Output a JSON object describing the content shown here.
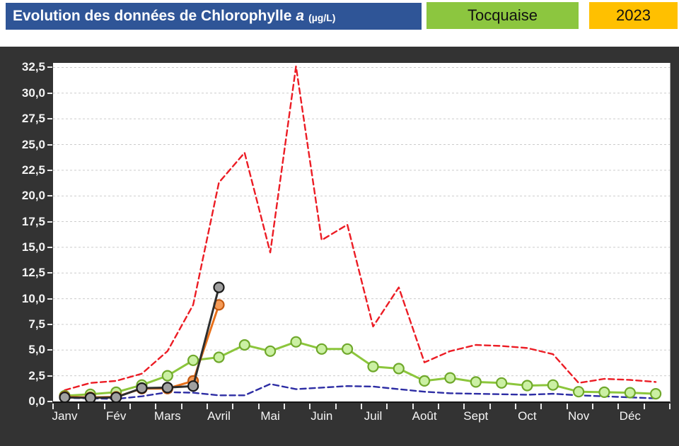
{
  "header": {
    "title_main": "Evolution des données de Chlorophylle",
    "title_italic": "a",
    "title_unit": "(µg/L)",
    "station_label": "Tocquaise",
    "year_label": "2023",
    "title_bg": "#2F5597",
    "station_bg": "#8CC63F",
    "year_bg": "#FFC000"
  },
  "chart_data": {
    "type": "line",
    "title": "Evolution des données de Chlorophylle a (µg/L)",
    "station": "Tocquaise",
    "year": "2023",
    "legend": "none",
    "grid": "horizontal-dashed",
    "panel_bg": "#333333",
    "plot_bg": "#ffffff",
    "points_per_month": 2,
    "x_month_labels": [
      "Janv",
      "Fév",
      "Mars",
      "Avril",
      "Mai",
      "Juin",
      "Juil",
      "Août",
      "Sept",
      "Oct",
      "Nov",
      "Déc"
    ],
    "ylim": [
      0,
      32.9
    ],
    "y_ticks": [
      0,
      2.5,
      5,
      7.5,
      10,
      12.5,
      15,
      17.5,
      20,
      22.5,
      25,
      27.5,
      30,
      32.5
    ],
    "y_tick_labels": [
      "0,0",
      "2,5",
      "5,0",
      "7,5",
      "10,0",
      "12,5",
      "15,0",
      "17,5",
      "20,0",
      "22,5",
      "25,0",
      "27,5",
      "30,0",
      "32,5"
    ],
    "series": [
      {
        "name": "red-dashed-max",
        "color": "#EC1C24",
        "style": "dashed",
        "marker": false,
        "values": [
          1.1,
          1.8,
          2.0,
          2.7,
          4.9,
          9.4,
          21.3,
          24.2,
          14.5,
          32.6,
          15.7,
          17.2,
          7.3,
          11.1,
          3.8,
          4.9,
          5.5,
          5.4,
          5.2,
          4.6,
          1.8,
          2.2,
          2.1,
          1.9
        ]
      },
      {
        "name": "blue-dashed-min",
        "color": "#2D2DA4",
        "style": "dashed",
        "marker": false,
        "values": [
          0.35,
          0.3,
          0.25,
          0.5,
          0.9,
          0.85,
          0.6,
          0.6,
          1.7,
          1.2,
          1.35,
          1.5,
          1.45,
          1.2,
          0.95,
          0.8,
          0.75,
          0.7,
          0.65,
          0.75,
          0.6,
          0.5,
          0.4,
          0.3
        ]
      },
      {
        "name": "green-line",
        "color": "#8CC63C",
        "style": "solid",
        "marker": true,
        "marker_fill": "#CBF0A3",
        "marker_stroke": "#6FA82B",
        "values": [
          0.55,
          0.7,
          0.9,
          1.6,
          2.5,
          4.0,
          4.3,
          5.5,
          4.9,
          5.8,
          5.1,
          5.1,
          3.4,
          3.2,
          2.0,
          2.3,
          1.9,
          1.8,
          1.55,
          1.6,
          0.95,
          0.9,
          0.85,
          0.75
        ]
      },
      {
        "name": "orange-line",
        "color": "#E8701A",
        "style": "solid",
        "marker": true,
        "marker_fill": "#F59B57",
        "marker_stroke": "#C55A11",
        "values": [
          0.45,
          0.4,
          0.45,
          1.25,
          1.25,
          2.0,
          9.4
        ]
      },
      {
        "name": "gray-line",
        "color": "#2E2E2E",
        "style": "solid",
        "marker": true,
        "marker_fill": "#A0A0A0",
        "marker_stroke": "#1A1A1A",
        "values": [
          0.4,
          0.35,
          0.4,
          1.3,
          1.35,
          1.5,
          11.1
        ]
      }
    ]
  }
}
